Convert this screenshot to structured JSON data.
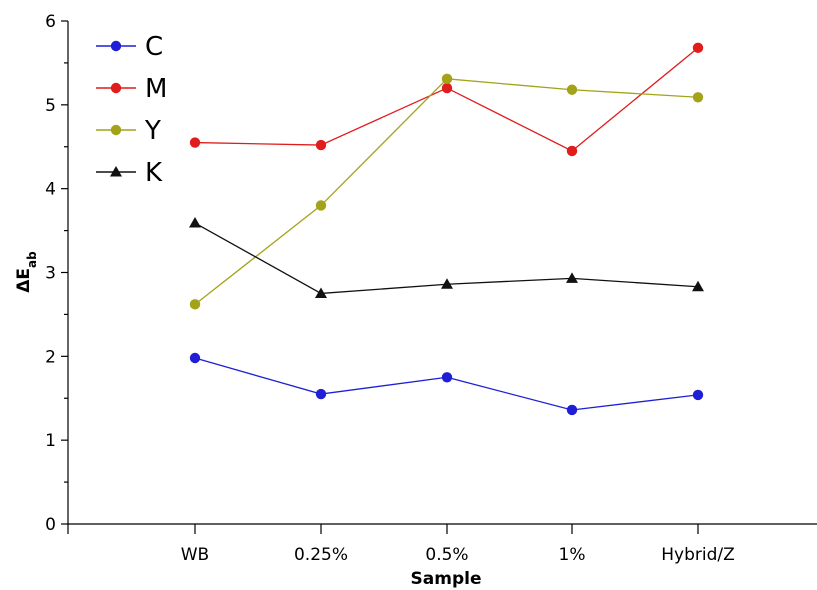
{
  "chart_data": {
    "type": "line",
    "xlabel": "Sample",
    "ylabel_main": "ΔE",
    "ylabel_sub": "ab",
    "categories": [
      "WB",
      "0.25%",
      "0.5%",
      "1%",
      "Hybrid/Z"
    ],
    "ylim": [
      0,
      6
    ],
    "yticks": [
      "0",
      "1",
      "2",
      "3",
      "4",
      "5",
      "6"
    ],
    "grid": false,
    "legend_position": "top-left",
    "series": [
      {
        "name": "C",
        "color": "#1f1fd6",
        "marker": "circle",
        "values": [
          1.98,
          1.55,
          1.75,
          1.36,
          1.54
        ]
      },
      {
        "name": "M",
        "color": "#e01c1c",
        "marker": "circle",
        "values": [
          4.55,
          4.52,
          5.2,
          4.45,
          5.68
        ]
      },
      {
        "name": "Y",
        "color": "#a3a31a",
        "marker": "circle",
        "values": [
          2.62,
          3.8,
          5.31,
          5.18,
          5.09
        ]
      },
      {
        "name": "K",
        "color": "#111111",
        "marker": "triangle",
        "values": [
          3.59,
          2.75,
          2.86,
          2.93,
          2.83
        ]
      }
    ]
  }
}
